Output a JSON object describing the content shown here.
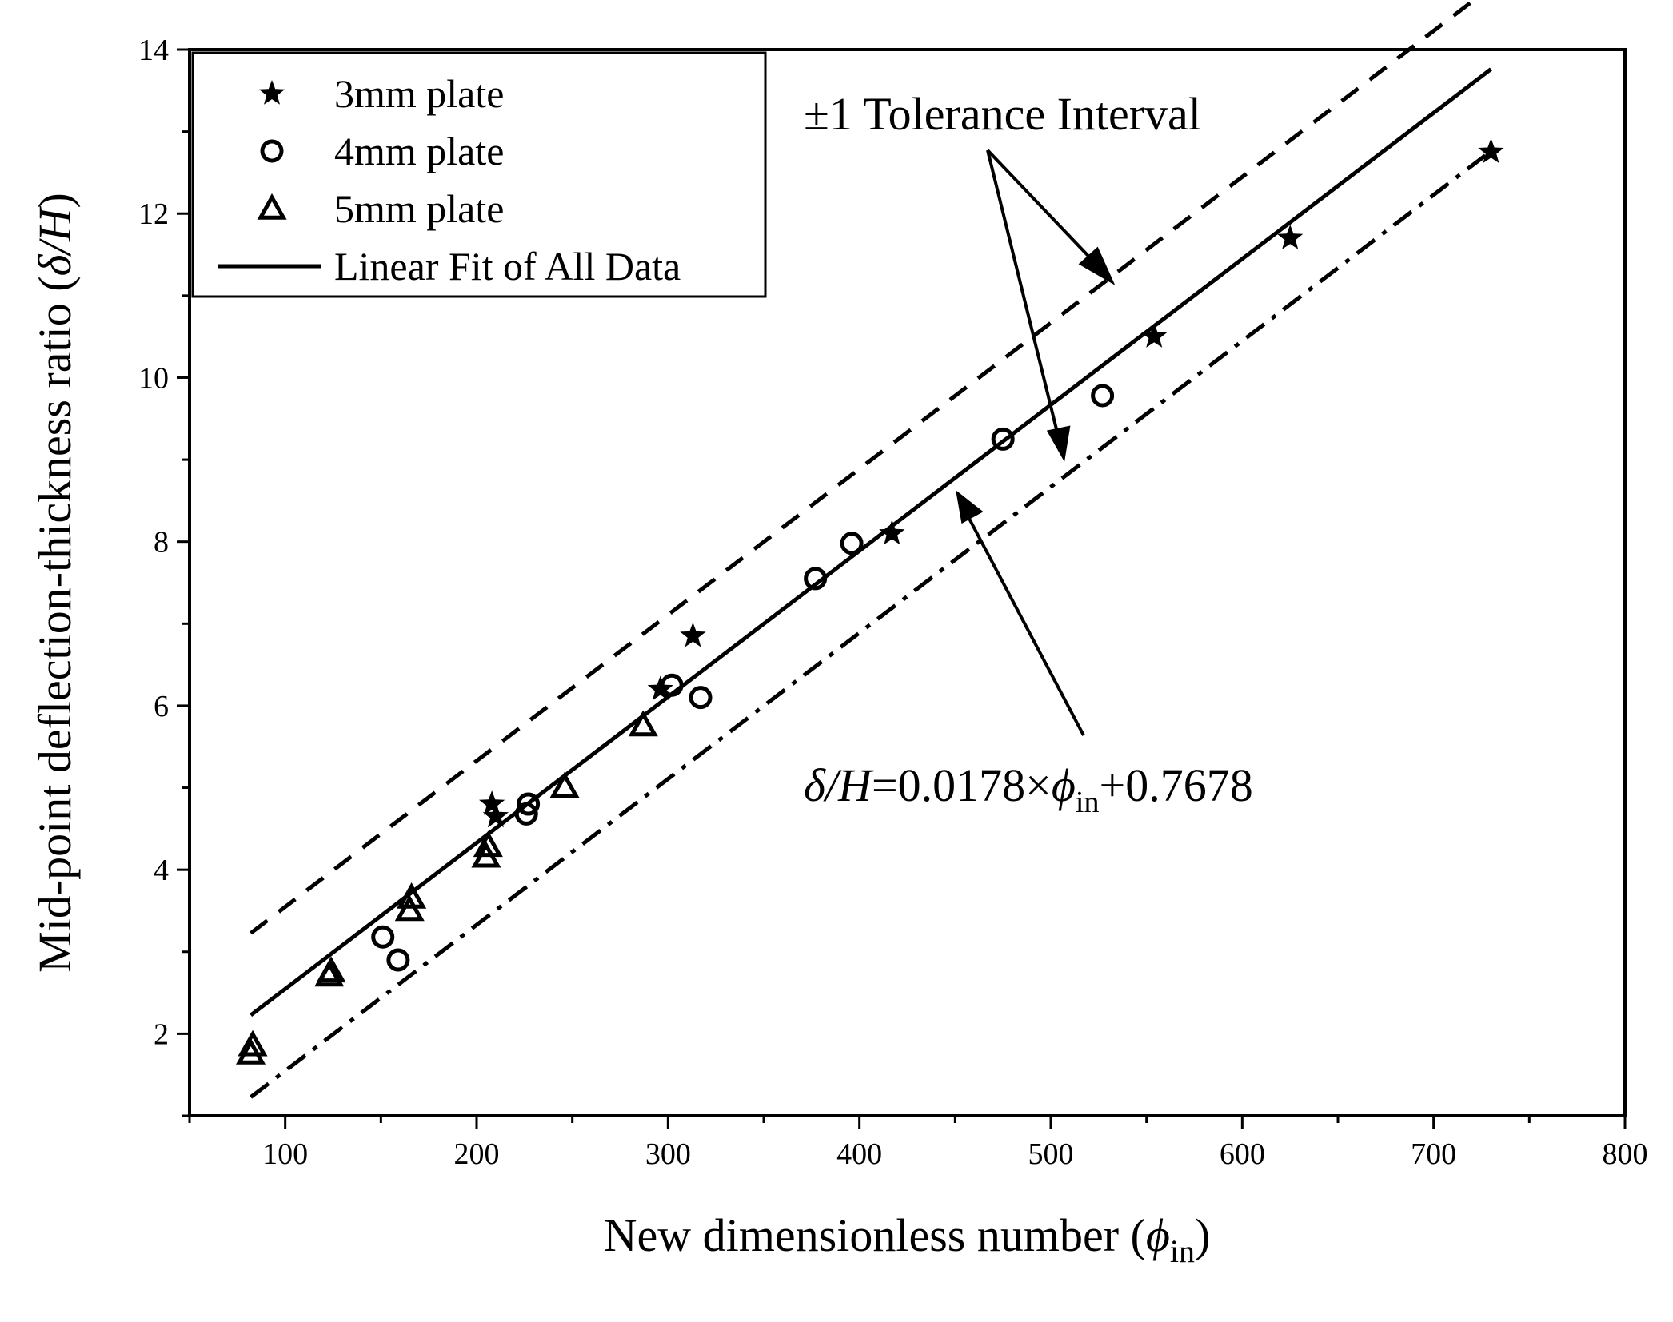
{
  "chart_data": {
    "type": "scatter",
    "xlabel": {
      "main": "New dimensionless number (",
      "symbol": "ϕ",
      "sub": "in",
      "close": ")"
    },
    "ylabel": {
      "main": "Mid-point deflection-thickness ratio (",
      "symbol": "δ/H",
      "close": ")"
    },
    "xlim": [
      50,
      800
    ],
    "ylim": [
      1,
      14
    ],
    "x_ticks": [
      100,
      200,
      300,
      400,
      500,
      600,
      700,
      800
    ],
    "y_ticks": [
      2,
      4,
      6,
      8,
      10,
      12,
      14
    ],
    "x_minor_step": 50,
    "y_minor_step": 1,
    "legend": {
      "placement": "top-left",
      "entries": [
        "3mm plate",
        "4mm plate",
        "5mm plate",
        "Linear Fit of All Data"
      ]
    },
    "series": [
      {
        "name": "3mm plate",
        "marker": "star",
        "x": [
          208,
          210,
          296,
          313,
          417,
          554,
          625,
          730
        ],
        "y": [
          4.8,
          4.65,
          6.2,
          6.85,
          8.1,
          10.5,
          11.7,
          12.75
        ]
      },
      {
        "name": "4mm plate",
        "marker": "circle",
        "x": [
          151,
          159,
          226,
          227,
          302,
          317,
          377,
          396,
          475,
          527
        ],
        "y": [
          3.18,
          2.9,
          4.68,
          4.8,
          6.25,
          6.1,
          7.55,
          7.98,
          9.25,
          9.78
        ]
      },
      {
        "name": "5mm plate",
        "marker": "triangle",
        "x": [
          82,
          83,
          123,
          124,
          165,
          166,
          205,
          206,
          246,
          287
        ],
        "y": [
          1.75,
          1.85,
          2.7,
          2.75,
          3.5,
          3.65,
          4.15,
          4.28,
          5.0,
          5.75
        ]
      }
    ],
    "fit": {
      "name": "Linear Fit of All Data",
      "slope": 0.0178,
      "intercept": 0.7678,
      "x_range": [
        82,
        730
      ],
      "tolerance_offset": 1,
      "upper_x_range": [
        82,
        740
      ],
      "lower_x_range": [
        82,
        730
      ]
    },
    "annotations": {
      "tolerance": "±1 Tolerance Interval",
      "equation_lhs": "δ/H",
      "equation_mid": "=0.0178×",
      "equation_sym": "ϕ",
      "equation_sub": "in",
      "equation_rhs": "+0.7678"
    }
  }
}
